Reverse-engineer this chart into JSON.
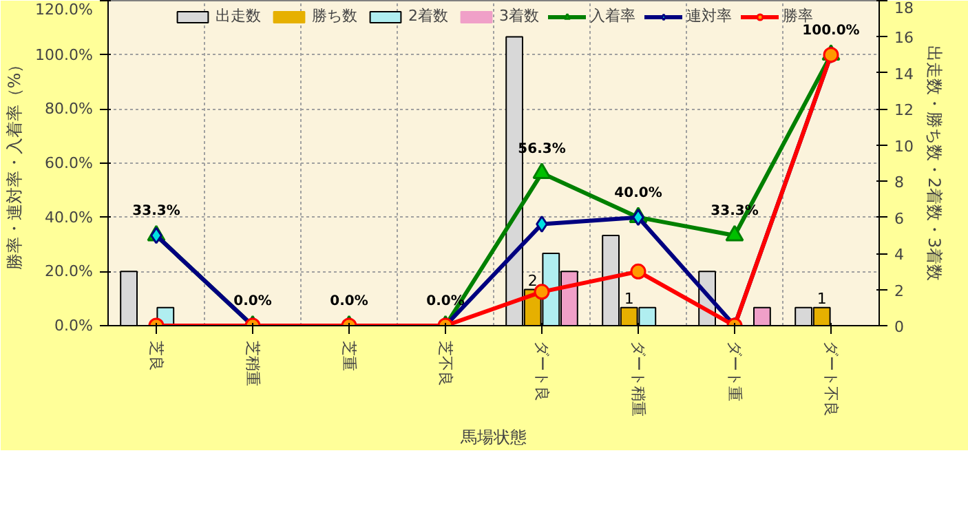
{
  "chart_data": {
    "type": "bar",
    "categories": [
      "芝良",
      "芝稍重",
      "芝重",
      "芝不良",
      "ダート良",
      "ダート稍重",
      "ダート重",
      "ダート不良"
    ],
    "xlabel": "馬場状態",
    "ylabel": "勝率・連対率・入着率（%）",
    "y2label": "出走数・勝ち数・2着数・3着数",
    "ylim": [
      0,
      120
    ],
    "yticks": [
      {
        "value": 0,
        "label": "0.0%"
      },
      {
        "value": 20,
        "label": "20.0%"
      },
      {
        "value": 40,
        "label": "40.0%"
      },
      {
        "value": 60,
        "label": "60.0%"
      },
      {
        "value": 80,
        "label": "80.0%"
      },
      {
        "value": 100,
        "label": "100.0%"
      },
      {
        "value": 120,
        "label": "120.0%"
      }
    ],
    "y2lim": [
      0,
      18
    ],
    "y2ticks": [
      0,
      2,
      4,
      6,
      8,
      10,
      12,
      14,
      16,
      18
    ],
    "grid": true,
    "legend": "top",
    "series": [
      {
        "name": "出走数",
        "axis": "y2",
        "color": "#d8d8d8",
        "values": [
          3,
          0,
          0,
          0,
          16,
          5,
          3,
          1
        ]
      },
      {
        "name": "勝ち数",
        "axis": "y2",
        "color": "#e6b000",
        "values": [
          0,
          0,
          0,
          0,
          2,
          1,
          0,
          1
        ],
        "value_labels": [
          null,
          null,
          null,
          null,
          "2",
          "1",
          null,
          "1"
        ]
      },
      {
        "name": "2着数",
        "axis": "y2",
        "color": "#b0eef0",
        "values": [
          1,
          0,
          0,
          0,
          4,
          1,
          0,
          0
        ]
      },
      {
        "name": "3着数",
        "axis": "y2",
        "color": "#f0a0c8",
        "values": [
          0,
          0,
          0,
          0,
          3,
          0,
          1,
          0
        ]
      },
      {
        "name": "入着率",
        "type": "line",
        "axis": "y",
        "color": "#008000",
        "marker": "triangle",
        "values": [
          33.3,
          0,
          0,
          0,
          56.3,
          40,
          33.3,
          100
        ],
        "value_labels": [
          "33.3%",
          "0.0%",
          "0.0%",
          "0.0%",
          "56.3%",
          "40.0%",
          "33.3%",
          "100.0%"
        ]
      },
      {
        "name": "連対率",
        "type": "line",
        "axis": "y",
        "color": "#000080",
        "marker": "diamond",
        "values": [
          33.3,
          0,
          0,
          0,
          37.5,
          40,
          0,
          100
        ]
      },
      {
        "name": "勝率",
        "type": "line",
        "axis": "y",
        "color": "#ff0000",
        "marker": "circle",
        "values": [
          0,
          0,
          0,
          0,
          12.5,
          20,
          0,
          100
        ]
      }
    ]
  }
}
